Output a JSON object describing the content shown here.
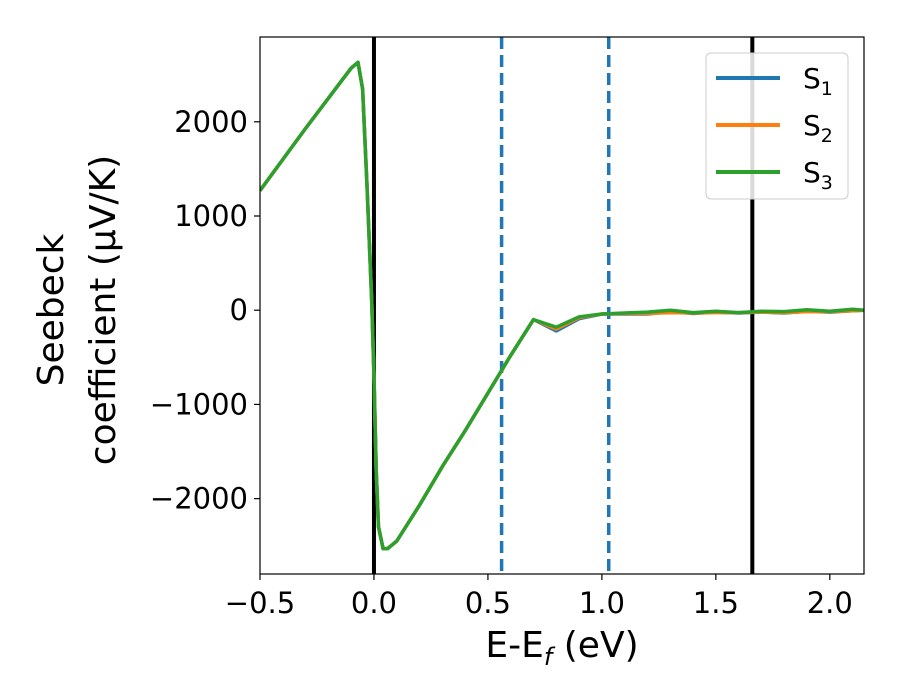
{
  "chart_data": {
    "type": "line",
    "xlabel": "E-E",
    "xlabel_sub": "f",
    "xlabel_suffix": " (eV)",
    "ylabel_line1": "Seebeck",
    "ylabel_line2": "coefficient  (μV/K)",
    "xlim": [
      -0.5,
      2.15
    ],
    "ylim": [
      -2800,
      2900
    ],
    "xticks": [
      -0.5,
      0.0,
      0.5,
      1.0,
      1.5,
      2.0
    ],
    "xtick_labels": [
      "−0.5",
      "0.0",
      "0.5",
      "1.0",
      "1.5",
      "2.0"
    ],
    "yticks": [
      -2000,
      -1000,
      0,
      1000,
      2000
    ],
    "ytick_labels": [
      "−2000",
      "−1000",
      "0",
      "1000",
      "2000"
    ],
    "grid": false,
    "legend_position": "top-right",
    "vlines": [
      {
        "x": 0.0,
        "style": "solid",
        "color": "#000000"
      },
      {
        "x": 1.66,
        "style": "solid",
        "color": "#000000"
      },
      {
        "x": 0.56,
        "style": "dashed",
        "color": "#1f77b4"
      },
      {
        "x": 1.03,
        "style": "dashed",
        "color": "#1f77b4"
      }
    ],
    "series": [
      {
        "name": "S",
        "name_sub": "1",
        "color": "#1f77b4",
        "x": [
          -0.5,
          -0.3,
          -0.1,
          -0.07,
          -0.05,
          -0.03,
          -0.01,
          0.0,
          0.01,
          0.02,
          0.04,
          0.06,
          0.1,
          0.2,
          0.3,
          0.4,
          0.5,
          0.6,
          0.7,
          0.8,
          0.9,
          1.0,
          1.1,
          1.2,
          1.3,
          1.4,
          1.5,
          1.6,
          1.7,
          1.8,
          1.9,
          2.0,
          2.1,
          2.15
        ],
        "y": [
          1270,
          1930,
          2570,
          2630,
          2350,
          1300,
          100,
          -700,
          -1700,
          -2300,
          -2530,
          -2530,
          -2450,
          -2070,
          -1660,
          -1280,
          -880,
          -480,
          -100,
          -220,
          -90,
          -40,
          -40,
          -40,
          -15,
          -35,
          -20,
          -30,
          -20,
          -30,
          -10,
          -20,
          -5,
          0
        ]
      },
      {
        "name": "S",
        "name_sub": "2",
        "color": "#ff7f0e",
        "x": [
          -0.5,
          -0.3,
          -0.1,
          -0.07,
          -0.05,
          -0.03,
          -0.01,
          0.0,
          0.01,
          0.02,
          0.04,
          0.06,
          0.1,
          0.2,
          0.3,
          0.4,
          0.5,
          0.6,
          0.7,
          0.8,
          0.9,
          1.0,
          1.1,
          1.2,
          1.3,
          1.4,
          1.5,
          1.6,
          1.7,
          1.8,
          1.9,
          2.0,
          2.1,
          2.15
        ],
        "y": [
          1270,
          1930,
          2570,
          2630,
          2350,
          1300,
          100,
          -700,
          -1700,
          -2300,
          -2530,
          -2530,
          -2450,
          -2070,
          -1660,
          -1280,
          -880,
          -480,
          -100,
          -200,
          -80,
          -40,
          -35,
          -35,
          -25,
          -30,
          -25,
          -25,
          -20,
          -25,
          -15,
          -15,
          -5,
          0
        ]
      },
      {
        "name": "S",
        "name_sub": "3",
        "color": "#2ca02c",
        "x": [
          -0.5,
          -0.3,
          -0.1,
          -0.07,
          -0.05,
          -0.03,
          -0.01,
          0.0,
          0.01,
          0.02,
          0.04,
          0.06,
          0.1,
          0.2,
          0.3,
          0.4,
          0.5,
          0.6,
          0.7,
          0.8,
          0.9,
          1.0,
          1.1,
          1.2,
          1.3,
          1.4,
          1.5,
          1.6,
          1.7,
          1.8,
          1.9,
          2.0,
          2.1,
          2.15
        ],
        "y": [
          1270,
          1930,
          2570,
          2630,
          2350,
          1300,
          100,
          -700,
          -1700,
          -2300,
          -2530,
          -2530,
          -2450,
          -2070,
          -1660,
          -1280,
          -880,
          -480,
          -100,
          -180,
          -70,
          -40,
          -30,
          -20,
          0,
          -25,
          -10,
          -25,
          -10,
          -15,
          5,
          -10,
          10,
          0
        ]
      }
    ]
  }
}
